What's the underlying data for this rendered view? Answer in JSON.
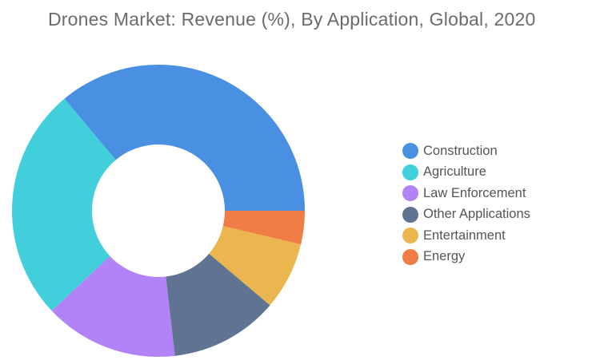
{
  "chart_data": {
    "type": "pie",
    "title": "Drones Market: Revenue (%), By Application, Global, 2020",
    "donut": true,
    "legend_position": "right",
    "categories": [
      "Construction",
      "Agriculture",
      "Law Enforcement",
      "Other Applications",
      "Entertainment",
      "Energy"
    ],
    "values": [
      36.1,
      25.9,
      14.8,
      12.0,
      7.5,
      3.7
    ],
    "colors": [
      "#4a90e2",
      "#40cfdb",
      "#b283f7",
      "#617392",
      "#ebb650",
      "#f07d45"
    ]
  }
}
